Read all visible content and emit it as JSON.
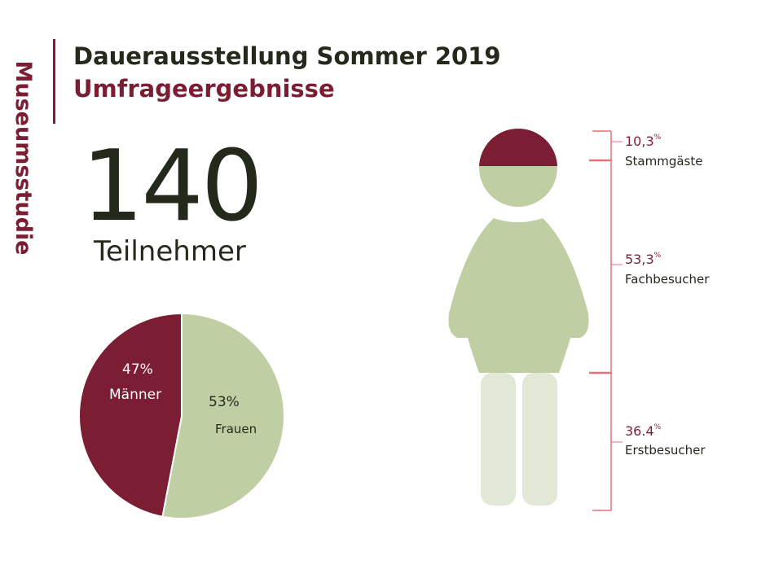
{
  "side_label": "Museumsstudie",
  "title": "Dauerausstellung Sommer 2019",
  "subtitle": "Umfrageergebnisse",
  "participants": {
    "count": "140",
    "label": "Teilnehmer"
  },
  "colors": {
    "accent": "#7b1d33",
    "green": "#c0cfa3",
    "light_green": "#e2e8d6",
    "bracket": "#e8707a",
    "text": "#232a1c"
  },
  "chart_data": [
    {
      "type": "pie",
      "slices": [
        {
          "label": "Frauen",
          "value": 53,
          "value_label": "53%",
          "color": "#c0cfa3"
        },
        {
          "label": "Männer",
          "value": 47,
          "value_label": "47%",
          "color": "#7b1d33"
        }
      ]
    },
    {
      "type": "pictogram",
      "segments": [
        {
          "label": "Stammgäste",
          "value": 10.3,
          "value_label": "10,3",
          "unit": "%",
          "color": "#7b1d33"
        },
        {
          "label": "Fachbesucher",
          "value": 53.3,
          "value_label": "53,3",
          "unit": "%",
          "color": "#c0cfa3"
        },
        {
          "label": "Erstbesucher",
          "value": 36.4,
          "value_label": "36.4",
          "unit": "%",
          "color": "#e2e8d6"
        }
      ]
    }
  ]
}
